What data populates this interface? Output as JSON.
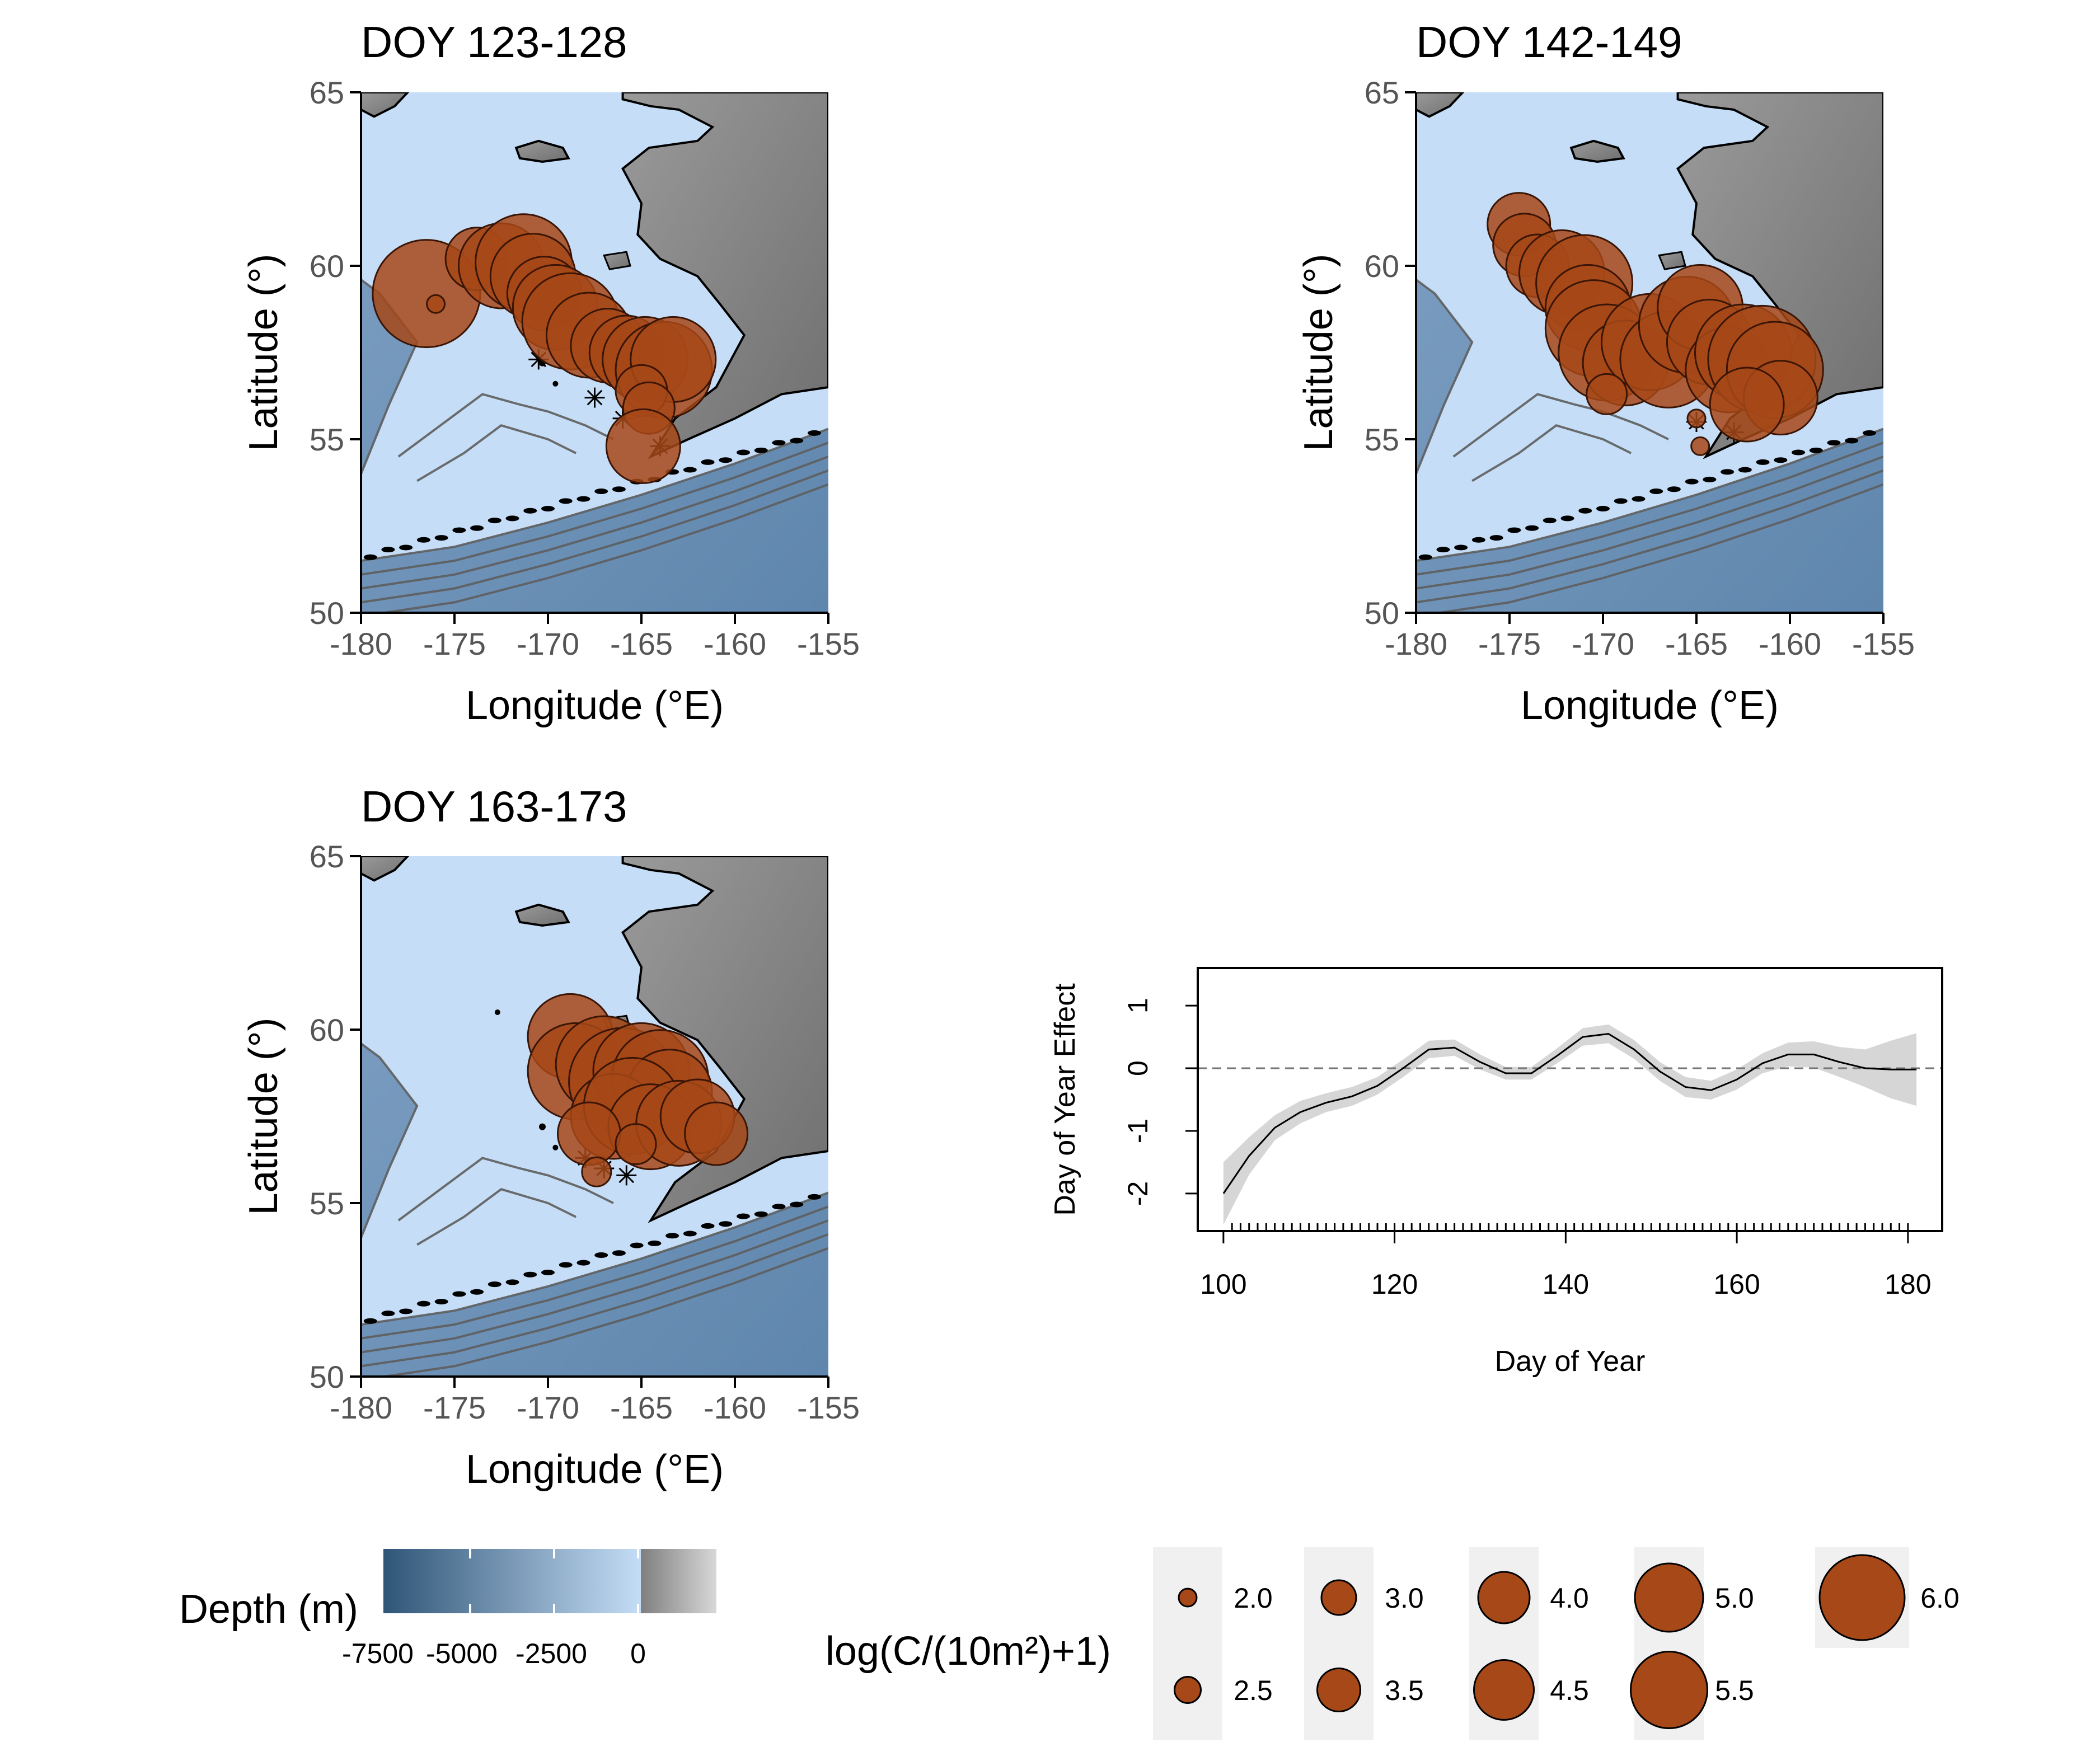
{
  "maps": [
    {
      "title": "DOY 123-128",
      "xlabel": "Longitude (°E)",
      "ylabel": "Latitude (°)",
      "xlim": [
        -180,
        -155
      ],
      "ylim": [
        50,
        65
      ],
      "x_ticks": [
        "-180",
        "-175",
        "-170",
        "-165",
        "-160",
        "-155"
      ],
      "y_ticks": [
        "50",
        "55",
        "60",
        "65"
      ],
      "points": [
        {
          "lon": -176.5,
          "lat": 59.2,
          "v": 6.0
        },
        {
          "lon": -173.8,
          "lat": 60.2,
          "v": 4.0
        },
        {
          "lon": -172.5,
          "lat": 60.0,
          "v": 5.0
        },
        {
          "lon": -171.3,
          "lat": 60.1,
          "v": 5.5
        },
        {
          "lon": -170.8,
          "lat": 59.7,
          "v": 5.0
        },
        {
          "lon": -170.2,
          "lat": 59.2,
          "v": 4.5
        },
        {
          "lon": -169.6,
          "lat": 58.8,
          "v": 5.0
        },
        {
          "lon": -168.8,
          "lat": 58.4,
          "v": 5.5
        },
        {
          "lon": -167.8,
          "lat": 58.0,
          "v": 5.0
        },
        {
          "lon": -166.8,
          "lat": 57.7,
          "v": 4.5
        },
        {
          "lon": -165.8,
          "lat": 57.5,
          "v": 4.5
        },
        {
          "lon": -164.8,
          "lat": 57.3,
          "v": 5.0
        },
        {
          "lon": -163.8,
          "lat": 57.0,
          "v": 5.5
        },
        {
          "lon": -163.3,
          "lat": 57.3,
          "v": 5.0
        },
        {
          "lon": -165.0,
          "lat": 56.4,
          "v": 3.5
        },
        {
          "lon": -164.6,
          "lat": 55.9,
          "v": 3.5
        },
        {
          "lon": -164.9,
          "lat": 54.8,
          "v": 4.5
        },
        {
          "lon": -176.0,
          "lat": 58.9,
          "v": 2.0
        }
      ]
    },
    {
      "title": "DOY 142-149",
      "xlabel": "Longitude (°E)",
      "ylabel": "Latitude (°)",
      "xlim": [
        -180,
        -155
      ],
      "ylim": [
        50,
        65
      ],
      "x_ticks": [
        "-180",
        "-175",
        "-170",
        "-165",
        "-160",
        "-155"
      ],
      "y_ticks": [
        "50",
        "55",
        "60",
        "65"
      ],
      "points": [
        {
          "lon": -174.5,
          "lat": 61.2,
          "v": 4.0
        },
        {
          "lon": -174.2,
          "lat": 60.6,
          "v": 4.0
        },
        {
          "lon": -173.5,
          "lat": 60.0,
          "v": 4.0
        },
        {
          "lon": -172.2,
          "lat": 59.8,
          "v": 5.0
        },
        {
          "lon": -171.0,
          "lat": 59.5,
          "v": 5.5
        },
        {
          "lon": -170.8,
          "lat": 58.8,
          "v": 5.0
        },
        {
          "lon": -170.5,
          "lat": 58.2,
          "v": 5.5
        },
        {
          "lon": -169.8,
          "lat": 57.5,
          "v": 5.5
        },
        {
          "lon": -168.8,
          "lat": 57.2,
          "v": 5.0
        },
        {
          "lon": -167.5,
          "lat": 57.8,
          "v": 5.5
        },
        {
          "lon": -166.5,
          "lat": 57.3,
          "v": 5.5
        },
        {
          "lon": -165.5,
          "lat": 58.3,
          "v": 5.5
        },
        {
          "lon": -164.8,
          "lat": 58.8,
          "v": 5.0
        },
        {
          "lon": -164.3,
          "lat": 57.8,
          "v": 5.0
        },
        {
          "lon": -163.3,
          "lat": 57.0,
          "v": 5.0
        },
        {
          "lon": -162.5,
          "lat": 57.5,
          "v": 5.5
        },
        {
          "lon": -161.5,
          "lat": 57.3,
          "v": 6.0
        },
        {
          "lon": -160.8,
          "lat": 57.0,
          "v": 5.5
        },
        {
          "lon": -160.5,
          "lat": 56.2,
          "v": 4.5
        },
        {
          "lon": -162.3,
          "lat": 56.0,
          "v": 4.5
        },
        {
          "lon": -169.8,
          "lat": 56.3,
          "v": 3.0
        },
        {
          "lon": -165.0,
          "lat": 55.6,
          "v": 2.0
        },
        {
          "lon": -164.8,
          "lat": 54.8,
          "v": 2.0
        }
      ]
    },
    {
      "title": "DOY 163-173",
      "xlabel": "Longitude (°E)",
      "ylabel": "Latitude (°)",
      "xlim": [
        -180,
        -155
      ],
      "ylim": [
        50,
        65
      ],
      "x_ticks": [
        "-180",
        "-175",
        "-170",
        "-165",
        "-160",
        "-155"
      ],
      "y_ticks": [
        "50",
        "55",
        "60",
        "65"
      ],
      "points": [
        {
          "lon": -168.8,
          "lat": 59.8,
          "v": 5.0
        },
        {
          "lon": -168.5,
          "lat": 58.8,
          "v": 5.5
        },
        {
          "lon": -167.0,
          "lat": 59.0,
          "v": 5.5
        },
        {
          "lon": -166.0,
          "lat": 58.5,
          "v": 6.0
        },
        {
          "lon": -165.0,
          "lat": 58.8,
          "v": 5.5
        },
        {
          "lon": -164.0,
          "lat": 58.6,
          "v": 5.5
        },
        {
          "lon": -163.5,
          "lat": 58.2,
          "v": 5.0
        },
        {
          "lon": -166.5,
          "lat": 57.5,
          "v": 5.0
        },
        {
          "lon": -165.5,
          "lat": 57.8,
          "v": 5.5
        },
        {
          "lon": -164.5,
          "lat": 57.2,
          "v": 5.0
        },
        {
          "lon": -163.0,
          "lat": 57.3,
          "v": 5.0
        },
        {
          "lon": -162.0,
          "lat": 57.5,
          "v": 4.5
        },
        {
          "lon": -161.0,
          "lat": 57.0,
          "v": 4.0
        },
        {
          "lon": -167.8,
          "lat": 57.0,
          "v": 4.0
        },
        {
          "lon": -167.4,
          "lat": 55.9,
          "v": 2.5
        },
        {
          "lon": -165.3,
          "lat": 56.7,
          "v": 3.0
        }
      ]
    }
  ],
  "chart_data": {
    "type": "line",
    "xlabel": "Day of Year",
    "ylabel": "Day of Year Effect",
    "xlim": [
      97,
      184
    ],
    "ylim": [
      -2.6,
      1.6
    ],
    "x_ticks": [
      "100",
      "120",
      "140",
      "160",
      "180"
    ],
    "y_ticks": [
      "-2",
      "-1",
      "0",
      "1"
    ],
    "reference_line_y": 0,
    "series": [
      {
        "x": [
          100,
          103,
          106,
          109,
          112,
          115,
          118,
          121,
          124,
          127,
          130,
          133,
          136,
          139,
          142,
          145,
          148,
          151,
          154,
          157,
          160,
          163,
          166,
          169,
          172,
          175,
          178,
          181
        ],
        "y": [
          -2.0,
          -1.4,
          -0.95,
          -0.7,
          -0.55,
          -0.45,
          -0.28,
          0.0,
          0.3,
          0.33,
          0.1,
          -0.08,
          -0.08,
          0.2,
          0.5,
          0.55,
          0.3,
          -0.05,
          -0.3,
          -0.35,
          -0.18,
          0.08,
          0.22,
          0.22,
          0.1,
          0.0,
          -0.02,
          -0.02
        ],
        "lower": [
          -2.5,
          -1.7,
          -1.15,
          -0.88,
          -0.7,
          -0.6,
          -0.42,
          -0.14,
          0.16,
          0.2,
          -0.02,
          -0.18,
          -0.18,
          0.08,
          0.36,
          0.4,
          0.15,
          -0.2,
          -0.46,
          -0.5,
          -0.34,
          -0.08,
          0.03,
          0.01,
          -0.14,
          -0.3,
          -0.48,
          -0.6
        ],
        "upper": [
          -1.5,
          -1.1,
          -0.75,
          -0.52,
          -0.4,
          -0.3,
          -0.14,
          0.14,
          0.44,
          0.46,
          0.22,
          0.02,
          0.02,
          0.32,
          0.64,
          0.7,
          0.45,
          0.1,
          -0.14,
          -0.2,
          -0.02,
          0.24,
          0.41,
          0.43,
          0.34,
          0.3,
          0.44,
          0.56
        ]
      }
    ],
    "rug_start": 101,
    "rug_end": 180
  },
  "depth_legend": {
    "title": "Depth (m)",
    "ticks": [
      "-7500",
      "-5000",
      "-2500",
      "0"
    ],
    "colors": [
      "#2f5577",
      "#c5ddf6",
      "#7f7f7f",
      "#d8d8d8"
    ]
  },
  "size_legend": {
    "title": "log(C/(10m²)+1)",
    "items": [
      "2.0",
      "2.5",
      "3.0",
      "3.5",
      "4.0",
      "4.5",
      "5.0",
      "5.5",
      "6.0"
    ],
    "values": [
      2.0,
      2.5,
      3.0,
      3.5,
      4.0,
      4.5,
      5.0,
      5.5,
      6.0
    ]
  },
  "colors": {
    "point_fill": "#a64818",
    "point_stroke": "#3a1505",
    "ci_band": "#d6d6d6",
    "shelf": "#c5ddf6",
    "land": "#8c8c8c",
    "deep": "#6f93b8",
    "contour": "#5e5e5e"
  }
}
